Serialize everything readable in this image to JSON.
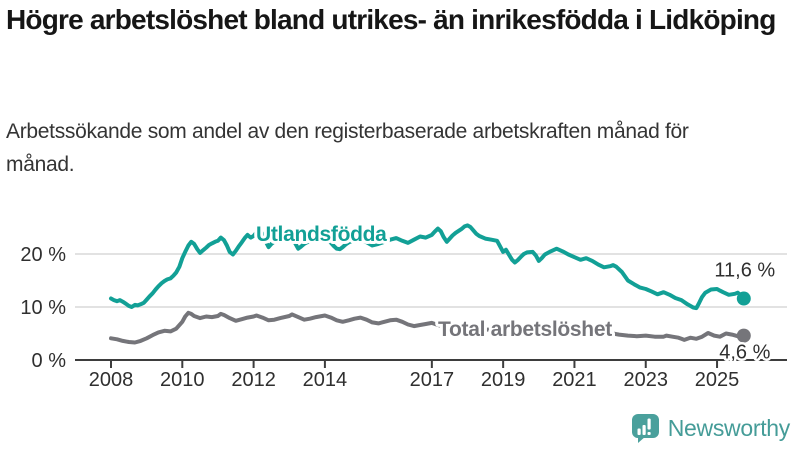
{
  "header": {
    "title": "Högre arbetslöshet bland utrikes- än inrikesfödda i Lidköping",
    "subtitle": "Arbetssökande som andel av den registerbaserade arbetskraften månad för månad."
  },
  "chart_data": {
    "type": "line",
    "unit": "%",
    "grid": "horizontal",
    "x_axis": {
      "ticks": [
        2008,
        2010,
        2012,
        2014,
        2017,
        2019,
        2021,
        2023,
        2025
      ]
    },
    "y_axis": {
      "ticks": [
        0,
        10,
        20
      ],
      "tick_labels": [
        "0 %",
        "10 %",
        "20 %"
      ],
      "range": [
        0,
        27
      ]
    },
    "series": [
      {
        "name": "Utlandsfödda",
        "color": "#12a096",
        "end_value": 11.6,
        "end_label": "11,6 %",
        "points": [
          [
            2008.0,
            11.6
          ],
          [
            2008.08,
            11.3
          ],
          [
            2008.17,
            11.1
          ],
          [
            2008.25,
            11.3
          ],
          [
            2008.33,
            11.0
          ],
          [
            2008.42,
            10.6
          ],
          [
            2008.5,
            10.2
          ],
          [
            2008.58,
            10.0
          ],
          [
            2008.67,
            10.4
          ],
          [
            2008.75,
            10.3
          ],
          [
            2008.83,
            10.5
          ],
          [
            2008.92,
            10.8
          ],
          [
            2009.0,
            11.4
          ],
          [
            2009.08,
            12.0
          ],
          [
            2009.17,
            12.6
          ],
          [
            2009.25,
            13.3
          ],
          [
            2009.33,
            13.9
          ],
          [
            2009.42,
            14.5
          ],
          [
            2009.5,
            14.9
          ],
          [
            2009.58,
            15.2
          ],
          [
            2009.67,
            15.4
          ],
          [
            2009.75,
            15.9
          ],
          [
            2009.83,
            16.5
          ],
          [
            2009.92,
            17.6
          ],
          [
            2010.0,
            19.2
          ],
          [
            2010.08,
            20.4
          ],
          [
            2010.17,
            21.6
          ],
          [
            2010.25,
            22.3
          ],
          [
            2010.33,
            21.9
          ],
          [
            2010.42,
            20.9
          ],
          [
            2010.5,
            20.2
          ],
          [
            2010.58,
            20.7
          ],
          [
            2010.67,
            21.2
          ],
          [
            2010.75,
            21.7
          ],
          [
            2010.83,
            22.0
          ],
          [
            2010.92,
            22.3
          ],
          [
            2011.0,
            22.5
          ],
          [
            2011.08,
            23.1
          ],
          [
            2011.17,
            22.6
          ],
          [
            2011.25,
            21.6
          ],
          [
            2011.33,
            20.4
          ],
          [
            2011.42,
            19.9
          ],
          [
            2011.5,
            20.6
          ],
          [
            2011.58,
            21.4
          ],
          [
            2011.67,
            22.2
          ],
          [
            2011.75,
            23.0
          ],
          [
            2011.83,
            23.6
          ],
          [
            2011.92,
            23.1
          ],
          [
            2012.0,
            23.4
          ],
          [
            2012.08,
            24.1
          ],
          [
            2012.17,
            24.5
          ],
          [
            2012.25,
            23.8
          ],
          [
            2012.33,
            22.5
          ],
          [
            2012.42,
            21.3
          ],
          [
            2012.5,
            21.9
          ],
          [
            2012.58,
            22.3
          ],
          [
            2012.67,
            22.6
          ],
          [
            2012.83,
            23.0
          ],
          [
            2013.0,
            23.2
          ],
          [
            2013.08,
            22.8
          ],
          [
            2013.17,
            22.0
          ],
          [
            2013.25,
            21.0
          ],
          [
            2013.33,
            21.4
          ],
          [
            2013.42,
            21.9
          ],
          [
            2013.5,
            22.2
          ],
          [
            2013.67,
            22.6
          ],
          [
            2013.83,
            22.7
          ],
          [
            2014.0,
            22.9
          ],
          [
            2014.08,
            22.6
          ],
          [
            2014.17,
            22.1
          ],
          [
            2014.25,
            21.5
          ],
          [
            2014.33,
            21.0
          ],
          [
            2014.42,
            20.9
          ],
          [
            2014.5,
            21.3
          ],
          [
            2014.58,
            21.8
          ],
          [
            2014.67,
            22.2
          ],
          [
            2014.83,
            22.6
          ],
          [
            2015.0,
            22.8
          ],
          [
            2015.17,
            22.2
          ],
          [
            2015.33,
            21.6
          ],
          [
            2015.5,
            21.9
          ],
          [
            2015.67,
            22.3
          ],
          [
            2015.83,
            22.7
          ],
          [
            2016.0,
            23.0
          ],
          [
            2016.17,
            22.5
          ],
          [
            2016.33,
            22.1
          ],
          [
            2016.5,
            22.7
          ],
          [
            2016.67,
            23.3
          ],
          [
            2016.83,
            23.1
          ],
          [
            2017.0,
            23.6
          ],
          [
            2017.08,
            24.2
          ],
          [
            2017.17,
            24.8
          ],
          [
            2017.25,
            24.3
          ],
          [
            2017.33,
            23.2
          ],
          [
            2017.42,
            22.3
          ],
          [
            2017.5,
            22.9
          ],
          [
            2017.58,
            23.5
          ],
          [
            2017.67,
            24.0
          ],
          [
            2017.83,
            24.7
          ],
          [
            2017.92,
            25.2
          ],
          [
            2018.0,
            25.4
          ],
          [
            2018.08,
            25.1
          ],
          [
            2018.17,
            24.4
          ],
          [
            2018.25,
            23.8
          ],
          [
            2018.33,
            23.4
          ],
          [
            2018.5,
            22.9
          ],
          [
            2018.67,
            22.7
          ],
          [
            2018.83,
            22.5
          ],
          [
            2019.0,
            20.4
          ],
          [
            2019.08,
            20.8
          ],
          [
            2019.17,
            19.8
          ],
          [
            2019.25,
            18.9
          ],
          [
            2019.33,
            18.4
          ],
          [
            2019.42,
            18.9
          ],
          [
            2019.5,
            19.5
          ],
          [
            2019.58,
            20.0
          ],
          [
            2019.67,
            20.3
          ],
          [
            2019.83,
            20.4
          ],
          [
            2019.92,
            19.7
          ],
          [
            2020.0,
            18.7
          ],
          [
            2020.08,
            19.2
          ],
          [
            2020.17,
            19.9
          ],
          [
            2020.33,
            20.5
          ],
          [
            2020.5,
            21.0
          ],
          [
            2020.67,
            20.5
          ],
          [
            2020.83,
            19.9
          ],
          [
            2021.0,
            19.4
          ],
          [
            2021.17,
            18.9
          ],
          [
            2021.33,
            19.2
          ],
          [
            2021.5,
            18.7
          ],
          [
            2021.67,
            18.0
          ],
          [
            2021.83,
            17.5
          ],
          [
            2022.0,
            17.7
          ],
          [
            2022.08,
            17.9
          ],
          [
            2022.17,
            17.6
          ],
          [
            2022.33,
            16.6
          ],
          [
            2022.5,
            15.0
          ],
          [
            2022.67,
            14.3
          ],
          [
            2022.83,
            13.7
          ],
          [
            2023.0,
            13.4
          ],
          [
            2023.17,
            12.9
          ],
          [
            2023.33,
            12.4
          ],
          [
            2023.5,
            12.8
          ],
          [
            2023.67,
            12.3
          ],
          [
            2023.83,
            11.7
          ],
          [
            2024.0,
            11.3
          ],
          [
            2024.17,
            10.5
          ],
          [
            2024.33,
            9.9
          ],
          [
            2024.42,
            9.8
          ],
          [
            2024.5,
            10.8
          ],
          [
            2024.58,
            11.9
          ],
          [
            2024.67,
            12.7
          ],
          [
            2024.83,
            13.3
          ],
          [
            2025.0,
            13.4
          ],
          [
            2025.08,
            13.1
          ],
          [
            2025.17,
            12.8
          ],
          [
            2025.33,
            12.3
          ],
          [
            2025.5,
            12.5
          ],
          [
            2025.58,
            12.7
          ],
          [
            2025.67,
            12.2
          ],
          [
            2025.75,
            11.6
          ]
        ]
      },
      {
        "name": "Total arbetslöshet",
        "color": "#75757a",
        "end_value": 4.6,
        "end_label": "4,6 %",
        "points": [
          [
            2008.0,
            4.1
          ],
          [
            2008.17,
            3.9
          ],
          [
            2008.33,
            3.6
          ],
          [
            2008.5,
            3.4
          ],
          [
            2008.67,
            3.3
          ],
          [
            2008.83,
            3.6
          ],
          [
            2009.0,
            4.1
          ],
          [
            2009.17,
            4.7
          ],
          [
            2009.33,
            5.2
          ],
          [
            2009.5,
            5.5
          ],
          [
            2009.67,
            5.4
          ],
          [
            2009.83,
            5.9
          ],
          [
            2010.0,
            7.2
          ],
          [
            2010.08,
            8.2
          ],
          [
            2010.17,
            8.9
          ],
          [
            2010.25,
            8.7
          ],
          [
            2010.33,
            8.3
          ],
          [
            2010.5,
            7.9
          ],
          [
            2010.67,
            8.2
          ],
          [
            2010.83,
            8.1
          ],
          [
            2011.0,
            8.3
          ],
          [
            2011.08,
            8.7
          ],
          [
            2011.17,
            8.5
          ],
          [
            2011.33,
            7.9
          ],
          [
            2011.5,
            7.4
          ],
          [
            2011.67,
            7.7
          ],
          [
            2011.83,
            8.0
          ],
          [
            2012.0,
            8.2
          ],
          [
            2012.08,
            8.4
          ],
          [
            2012.25,
            8.0
          ],
          [
            2012.42,
            7.5
          ],
          [
            2012.58,
            7.6
          ],
          [
            2012.75,
            7.9
          ],
          [
            2013.0,
            8.3
          ],
          [
            2013.08,
            8.6
          ],
          [
            2013.25,
            8.1
          ],
          [
            2013.42,
            7.6
          ],
          [
            2013.58,
            7.8
          ],
          [
            2013.75,
            8.1
          ],
          [
            2014.0,
            8.4
          ],
          [
            2014.17,
            8.0
          ],
          [
            2014.33,
            7.5
          ],
          [
            2014.5,
            7.2
          ],
          [
            2014.67,
            7.5
          ],
          [
            2014.83,
            7.8
          ],
          [
            2015.0,
            8.0
          ],
          [
            2015.17,
            7.6
          ],
          [
            2015.33,
            7.1
          ],
          [
            2015.5,
            6.9
          ],
          [
            2015.67,
            7.2
          ],
          [
            2015.83,
            7.5
          ],
          [
            2016.0,
            7.6
          ],
          [
            2016.17,
            7.2
          ],
          [
            2016.33,
            6.7
          ],
          [
            2016.5,
            6.4
          ],
          [
            2016.67,
            6.6
          ],
          [
            2016.83,
            6.8
          ],
          [
            2017.0,
            7.0
          ],
          [
            2017.17,
            6.6
          ],
          [
            2017.33,
            6.3
          ],
          [
            2017.5,
            6.1
          ],
          [
            2017.67,
            6.3
          ],
          [
            2017.83,
            6.5
          ],
          [
            2018.0,
            6.4
          ],
          [
            2018.25,
            6.0
          ],
          [
            2018.5,
            5.7
          ],
          [
            2018.75,
            5.8
          ],
          [
            2019.0,
            5.8
          ],
          [
            2019.25,
            5.4
          ],
          [
            2019.5,
            5.5
          ],
          [
            2019.75,
            5.7
          ],
          [
            2020.0,
            5.9
          ],
          [
            2020.25,
            6.5
          ],
          [
            2020.5,
            6.8
          ],
          [
            2020.75,
            6.6
          ],
          [
            2021.0,
            6.4
          ],
          [
            2021.25,
            6.0
          ],
          [
            2021.5,
            5.7
          ],
          [
            2021.75,
            5.4
          ],
          [
            2022.0,
            5.1
          ],
          [
            2022.25,
            4.8
          ],
          [
            2022.5,
            4.6
          ],
          [
            2022.75,
            4.5
          ],
          [
            2023.0,
            4.6
          ],
          [
            2023.25,
            4.4
          ],
          [
            2023.5,
            4.4
          ],
          [
            2023.58,
            4.6
          ],
          [
            2023.75,
            4.4
          ],
          [
            2023.92,
            4.2
          ],
          [
            2024.0,
            4.0
          ],
          [
            2024.08,
            3.8
          ],
          [
            2024.25,
            4.2
          ],
          [
            2024.42,
            4.0
          ],
          [
            2024.58,
            4.4
          ],
          [
            2024.75,
            5.1
          ],
          [
            2024.92,
            4.6
          ],
          [
            2025.08,
            4.4
          ],
          [
            2025.25,
            5.0
          ],
          [
            2025.42,
            4.8
          ],
          [
            2025.58,
            4.5
          ],
          [
            2025.75,
            4.6
          ]
        ]
      }
    ]
  },
  "footer": {
    "brand": "Newsworthy",
    "brand_color": "#459c98"
  },
  "colors": {
    "accent_teal": "#12a096",
    "line_gray": "#75757a",
    "axis": "#3d3d3d",
    "gridline": "#d8d8d8",
    "text_dark": "#2f2f2f"
  }
}
